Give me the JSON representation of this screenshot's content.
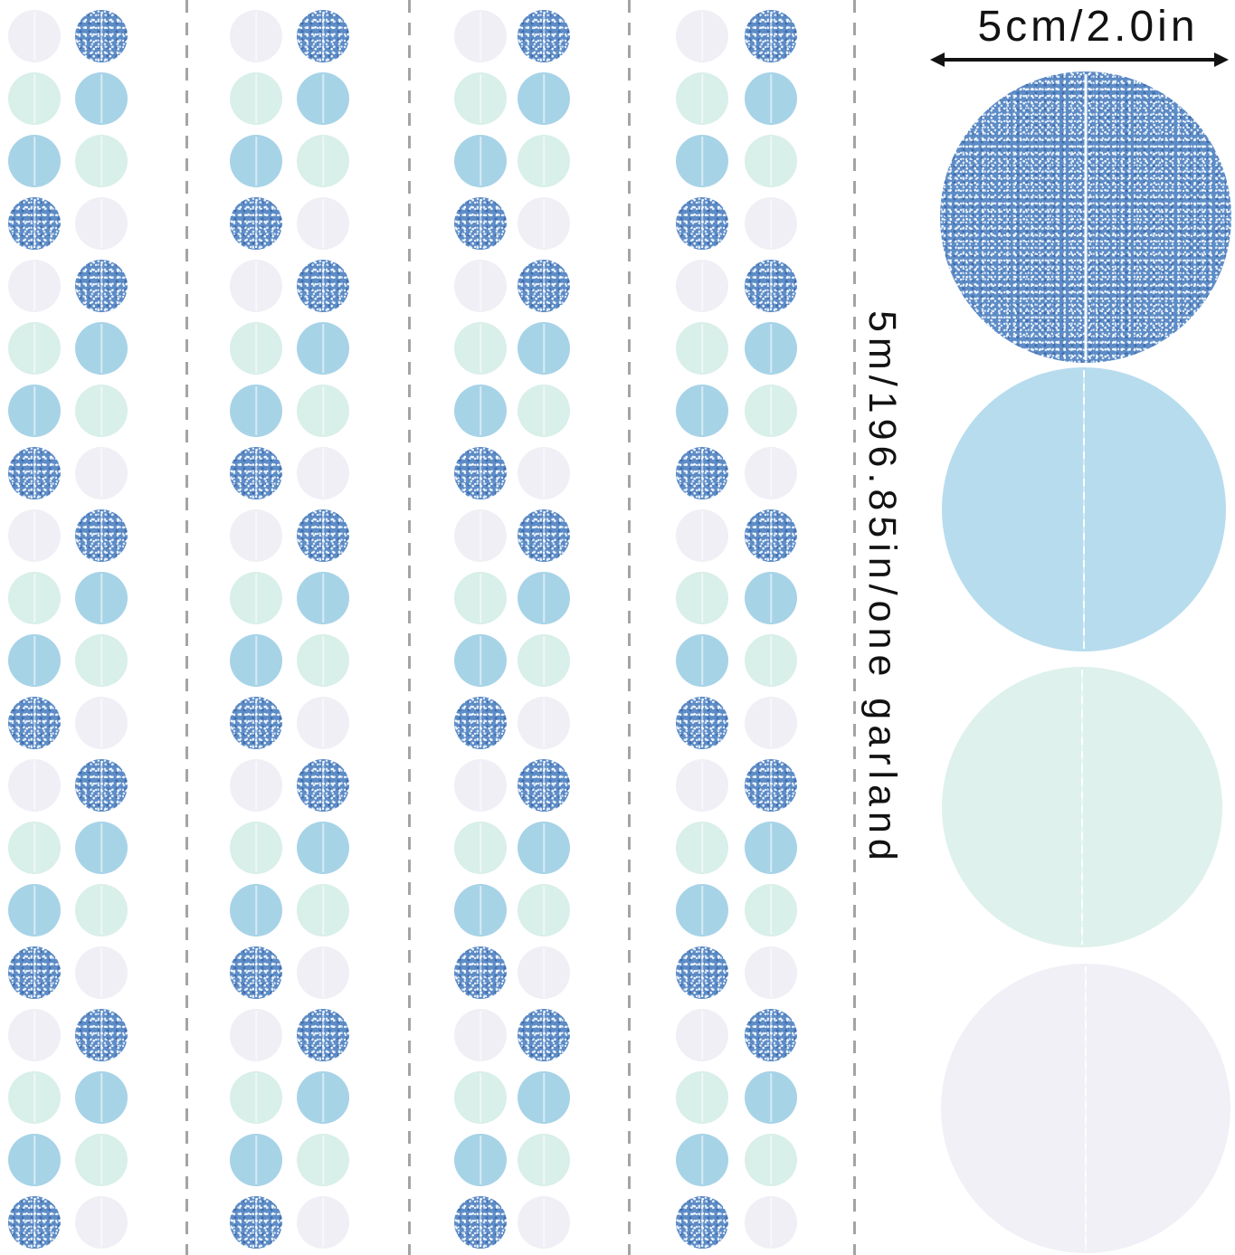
{
  "labels": {
    "diameter": "5cm/2.0in",
    "length": "5m/196.85in/one garland"
  },
  "colors": {
    "glitter_blue": "#5d8cc6",
    "light_blue": "#a7d3e7",
    "pale_mint": "#d9efe9",
    "white": "#f0eff5",
    "light_blue_large": "#b7dcee",
    "pale_mint_large": "#def1ec",
    "white_large": "#f1f0f6",
    "dash_gray": "#a4a4a4",
    "annotation_black": "#121212"
  },
  "garland": {
    "strand_count": 4,
    "rows_per_strand": 20,
    "dots_per_row": 2,
    "row_pattern": [
      [
        "white",
        "glitter_blue"
      ],
      [
        "pale_mint",
        "light_blue"
      ],
      [
        "light_blue",
        "pale_mint"
      ],
      [
        "glitter_blue",
        "white"
      ]
    ]
  },
  "detail_circles": [
    {
      "name": "glitter-blue",
      "color_key": "glitter_blue",
      "glitter": true
    },
    {
      "name": "light-blue",
      "color_key": "light_blue_large",
      "glitter": false
    },
    {
      "name": "pale-mint",
      "color_key": "pale_mint_large",
      "glitter": false
    },
    {
      "name": "white",
      "color_key": "white_large",
      "glitter": false
    }
  ]
}
